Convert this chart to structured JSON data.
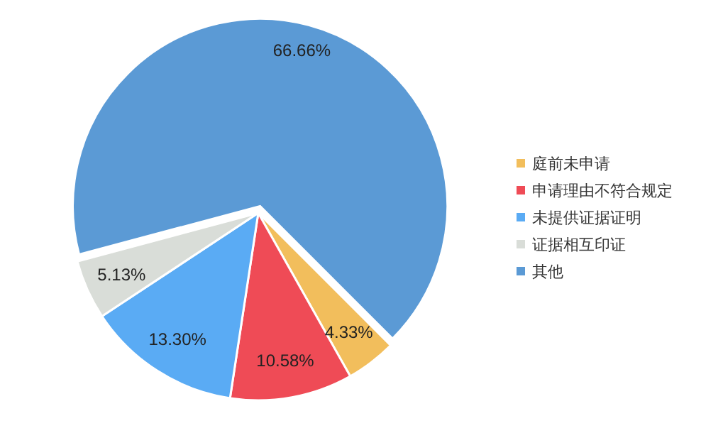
{
  "chart_data": {
    "type": "pie",
    "categories": [
      "庭前未申请",
      "申请理由不符合规定",
      "未提供证据证明",
      "证据相互印证",
      "其他"
    ],
    "values": [
      4.33,
      10.58,
      13.3,
      5.13,
      66.66
    ],
    "colors": [
      "#f2be5c",
      "#ef4b56",
      "#5aabf4",
      "#d9ddd8",
      "#5b9ad5"
    ],
    "value_labels": [
      "4.33%",
      "10.58%",
      "13.30%",
      "5.13%",
      "66.66%"
    ],
    "legend": "right"
  }
}
